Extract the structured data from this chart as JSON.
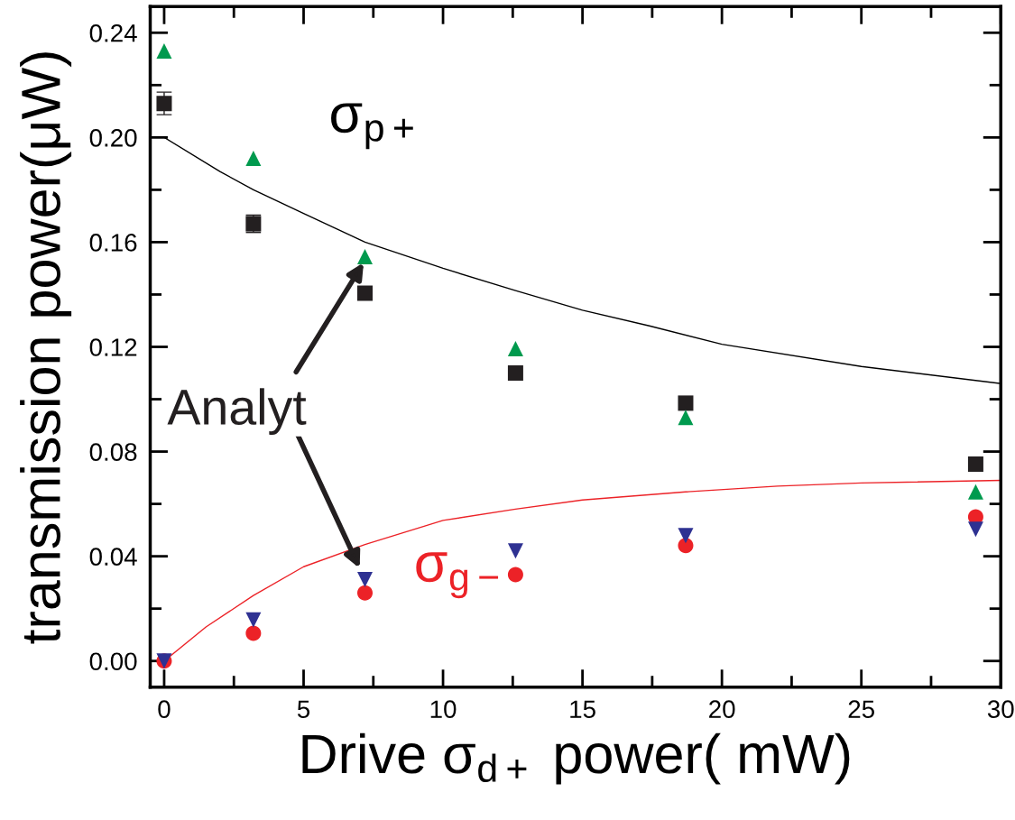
{
  "chart_data": {
    "type": "scatter",
    "xlabel": "Drive σ$_{d+}$ power( mW)",
    "ylabel": "transmission power(μW)",
    "xlim": [
      -0.5,
      30
    ],
    "ylim": [
      -0.01,
      0.25
    ],
    "xticks": [
      0,
      {
        "value": 2.5,
        "label": null
      },
      5,
      {
        "value": 7.5,
        "label": null
      },
      10,
      {
        "value": 12.5,
        "label": null
      },
      15,
      {
        "value": 17.5,
        "label": null
      },
      20,
      {
        "value": 22.5,
        "label": null
      },
      25,
      {
        "value": 27.5,
        "label": null
      },
      30
    ],
    "yticks": [
      {
        "value": 0,
        "label": "0.00"
      },
      {
        "value": 0.02,
        "label": null
      },
      {
        "value": 0.04,
        "label": "0.04"
      },
      {
        "value": 0.06,
        "label": null
      },
      {
        "value": 0.08,
        "label": "0.08"
      },
      {
        "value": 0.1,
        "label": null
      },
      {
        "value": 0.12,
        "label": "0.12"
      },
      {
        "value": 0.14,
        "label": null
      },
      {
        "value": 0.16,
        "label": "0.16"
      },
      {
        "value": 0.18,
        "label": null
      },
      {
        "value": 0.2,
        "label": "0.20"
      },
      {
        "value": 0.22,
        "label": null
      },
      {
        "value": 0.24,
        "label": "0.24"
      }
    ],
    "grid": false,
    "legend": false,
    "x": [
      0,
      3.2,
      7.2,
      12.6,
      18.7,
      29.1
    ],
    "series": [
      {
        "marker": "square",
        "color": "#231f20",
        "values": [
          0.213,
          0.167,
          0.1405,
          0.11,
          0.0985,
          0.0752
        ],
        "errors": [
          0.0043,
          0.0033,
          0.002,
          null,
          null,
          null
        ]
      },
      {
        "marker": "triangle",
        "color": "#009a4e",
        "values": [
          0.233,
          0.192,
          0.1545,
          0.1193,
          0.093,
          0.0646
        ]
      },
      {
        "marker": "circle",
        "color": "#ec2227",
        "values": [
          0.0,
          0.0106,
          0.026,
          0.033,
          0.0441,
          0.055
        ]
      },
      {
        "marker": "triangle-down",
        "color": "#2e3192",
        "values": [
          0.0,
          0.0157,
          0.0311,
          0.042,
          0.0479,
          0.0503
        ]
      },
      {
        "type": "line",
        "name": "σ$_{p+}$",
        "color": "#000000",
        "line_style": "solid",
        "marker": "none",
        "x": [
          0,
          2,
          3.2,
          5,
          7.2,
          10,
          12.6,
          15,
          17.4,
          20,
          25,
          30
        ],
        "values": [
          0.2,
          0.187,
          0.18,
          0.171,
          0.16,
          0.15,
          0.1415,
          0.134,
          0.128,
          0.121,
          0.1125,
          0.106
        ]
      },
      {
        "type": "line",
        "name": "σ$_{g−}$",
        "color": "#ec2227",
        "line_style": "solid",
        "marker": "none",
        "x": [
          0,
          1.5,
          3.2,
          5,
          7.2,
          10,
          12.6,
          15,
          18.7,
          22,
          25,
          30
        ],
        "values": [
          0.0,
          0.013,
          0.025,
          0.036,
          0.0445,
          0.0537,
          0.058,
          0.0615,
          0.0646,
          0.0668,
          0.068,
          0.069
        ]
      }
    ],
    "annotations": [
      {
        "text": "Analyt",
        "x": 7.2,
        "y": 0.153
      }
    ]
  }
}
